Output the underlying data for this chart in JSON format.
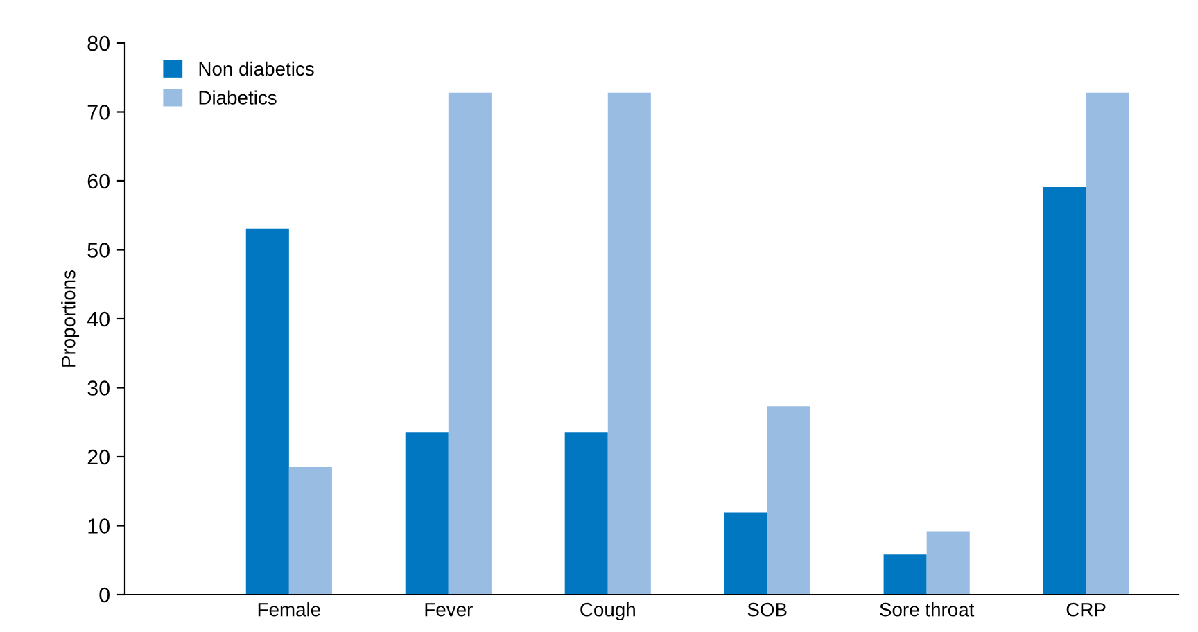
{
  "chart_data": {
    "type": "bar",
    "ylabel": "Proportions",
    "categories": [
      "Female",
      "Fever",
      "Cough",
      "SOB",
      "Sore throat",
      "CRP"
    ],
    "series": [
      {
        "name": "Non diabetics",
        "color": "#0077c0",
        "values": [
          53.1,
          23.5,
          23.5,
          11.9,
          5.8,
          59.1
        ]
      },
      {
        "name": "Diabetics",
        "color": "#99bce3",
        "values": [
          18.5,
          72.8,
          72.8,
          27.3,
          9.2,
          72.8
        ]
      }
    ],
    "ylim": [
      0,
      80
    ],
    "yticks": [
      0,
      10,
      20,
      30,
      40,
      50,
      60,
      70,
      80
    ],
    "grid": false,
    "legend": "top left"
  }
}
